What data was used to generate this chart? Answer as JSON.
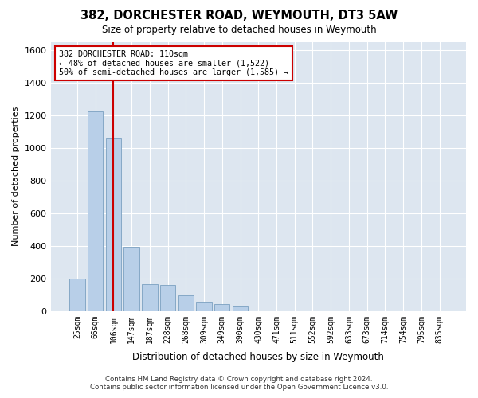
{
  "title": "382, DORCHESTER ROAD, WEYMOUTH, DT3 5AW",
  "subtitle": "Size of property relative to detached houses in Weymouth",
  "xlabel": "Distribution of detached houses by size in Weymouth",
  "ylabel": "Number of detached properties",
  "bar_color": "#b8cfe8",
  "bar_edge_color": "#7aa0c0",
  "background_color": "#dde6f0",
  "grid_color": "#ffffff",
  "categories": [
    "25sqm",
    "66sqm",
    "106sqm",
    "147sqm",
    "187sqm",
    "228sqm",
    "268sqm",
    "309sqm",
    "349sqm",
    "390sqm",
    "430sqm",
    "471sqm",
    "511sqm",
    "552sqm",
    "592sqm",
    "633sqm",
    "673sqm",
    "714sqm",
    "754sqm",
    "795sqm",
    "835sqm"
  ],
  "values": [
    200,
    1225,
    1060,
    395,
    165,
    160,
    95,
    55,
    45,
    30,
    0,
    0,
    0,
    0,
    0,
    0,
    0,
    0,
    0,
    0,
    0
  ],
  "ylim": [
    0,
    1650
  ],
  "yticks": [
    0,
    200,
    400,
    600,
    800,
    1000,
    1200,
    1400,
    1600
  ],
  "vline_x": 2,
  "vline_color": "#cc0000",
  "annotation_text": "382 DORCHESTER ROAD: 110sqm\n← 48% of detached houses are smaller (1,522)\n50% of semi-detached houses are larger (1,585) →",
  "annotation_box_color": "#ffffff",
  "annotation_box_edge": "#cc0000",
  "footer_line1": "Contains HM Land Registry data © Crown copyright and database right 2024.",
  "footer_line2": "Contains public sector information licensed under the Open Government Licence v3.0."
}
